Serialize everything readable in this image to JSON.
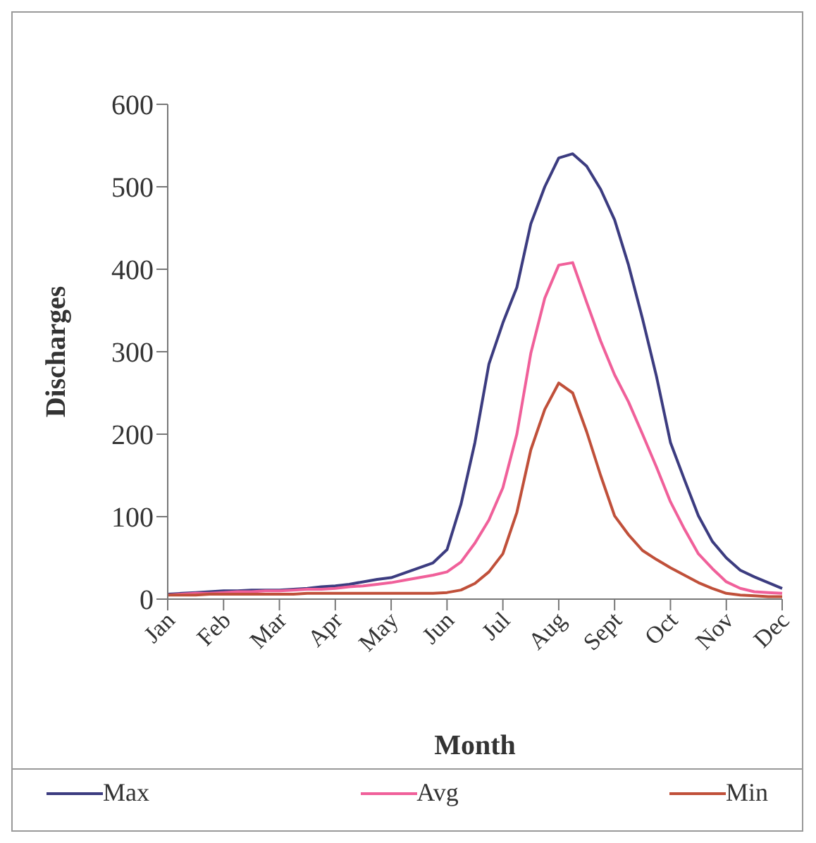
{
  "chart_data": {
    "type": "line",
    "xlabel": "Month",
    "ylabel": "Discharges",
    "categories": [
      "Jan",
      null,
      null,
      null,
      "Feb",
      null,
      null,
      null,
      "Mar",
      null,
      null,
      null,
      "Apr",
      null,
      null,
      null,
      "May",
      null,
      null,
      null,
      "Jun",
      null,
      null,
      null,
      "Jul",
      null,
      null,
      null,
      "Aug",
      null,
      null,
      null,
      "Sept",
      null,
      null,
      null,
      "Oct",
      null,
      null,
      null,
      "Nov",
      null,
      null,
      null,
      "Dec"
    ],
    "ylim": [
      0,
      600
    ],
    "yticks": [
      0,
      100,
      200,
      300,
      400,
      500,
      600
    ],
    "grid": false,
    "legend": "bottom",
    "marker": "none",
    "line_style": "solid",
    "series": [
      {
        "name": "Max",
        "color": "#3c3c80",
        "values": [
          6,
          7,
          8,
          9,
          10,
          10,
          11,
          11,
          11,
          12,
          13,
          15,
          16,
          18,
          21,
          24,
          26,
          32,
          38,
          44,
          60,
          115,
          190,
          285,
          335,
          378,
          455,
          500,
          535,
          540,
          525,
          497,
          460,
          405,
          340,
          270,
          190,
          145,
          101,
          70,
          50,
          35,
          27,
          20,
          13
        ]
      },
      {
        "name": "Avg",
        "color": "#f0609a",
        "values": [
          5,
          6,
          7,
          7,
          8,
          9,
          9,
          10,
          10,
          11,
          12,
          12,
          13,
          15,
          16,
          18,
          20,
          23,
          26,
          29,
          33,
          45,
          68,
          96,
          135,
          200,
          298,
          365,
          405,
          408,
          360,
          313,
          272,
          239,
          200,
          160,
          118,
          85,
          55,
          37,
          21,
          13,
          9,
          8,
          7
        ]
      },
      {
        "name": "Min",
        "color": "#c0503a",
        "values": [
          5,
          5,
          5,
          6,
          6,
          6,
          6,
          6,
          6,
          6,
          7,
          7,
          7,
          7,
          7,
          7,
          7,
          7,
          7,
          7,
          8,
          11,
          19,
          33,
          55,
          105,
          181,
          230,
          262,
          250,
          203,
          150,
          101,
          78,
          59,
          48,
          38,
          29,
          20,
          13,
          7,
          5,
          4,
          3,
          3
        ]
      }
    ]
  }
}
